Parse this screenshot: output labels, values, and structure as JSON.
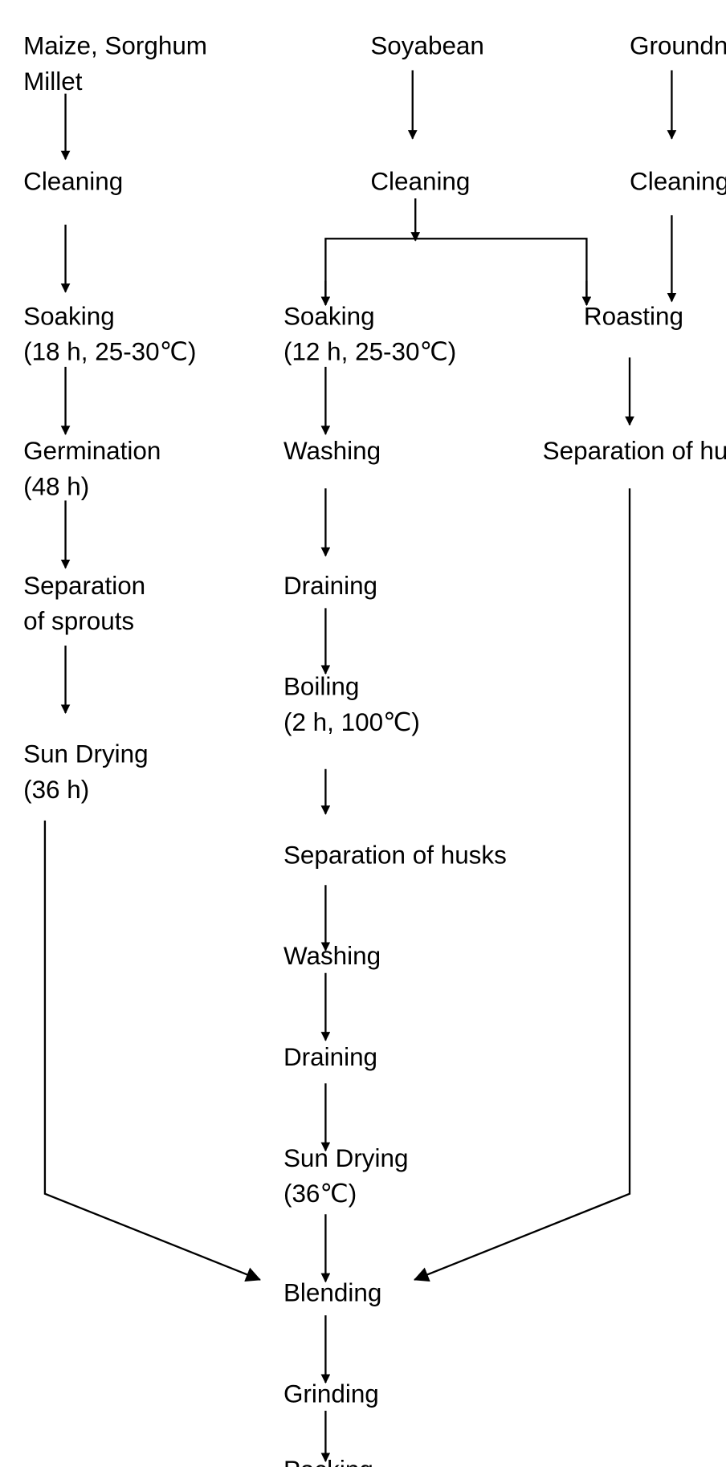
{
  "col1": {
    "source_line1": "Maize, Sorghum",
    "source_line2": "Millet",
    "cleaning": "Cleaning",
    "soaking": "Soaking",
    "soaking_cond": "(18 h, 25-30℃)",
    "germination": "Germination",
    "germination_cond": "(48 h)",
    "separation_line1": "Separation",
    "separation_line2": "of sprouts",
    "sun_drying": "Sun Drying",
    "sun_drying_cond": "(36 h)"
  },
  "col2": {
    "source": "Soyabean",
    "cleaning": "Cleaning",
    "soaking": "Soaking",
    "soaking_cond": "(12 h, 25-30℃)",
    "washing1": "Washing",
    "draining1": "Draining",
    "boiling": "Boiling",
    "boiling_cond": "(2 h, 100℃)",
    "separation": "Separation of husks",
    "washing2": "Washing",
    "draining2": "Draining",
    "sun_drying": "Sun Drying",
    "sun_drying_cond": "(36℃)",
    "blending": "Blending",
    "grinding": "Grinding",
    "packing": "Packing"
  },
  "col3": {
    "source": "Groundnut",
    "cleaning": "Cleaning",
    "roasting": "Roasting",
    "separation": "Separation of husks"
  }
}
